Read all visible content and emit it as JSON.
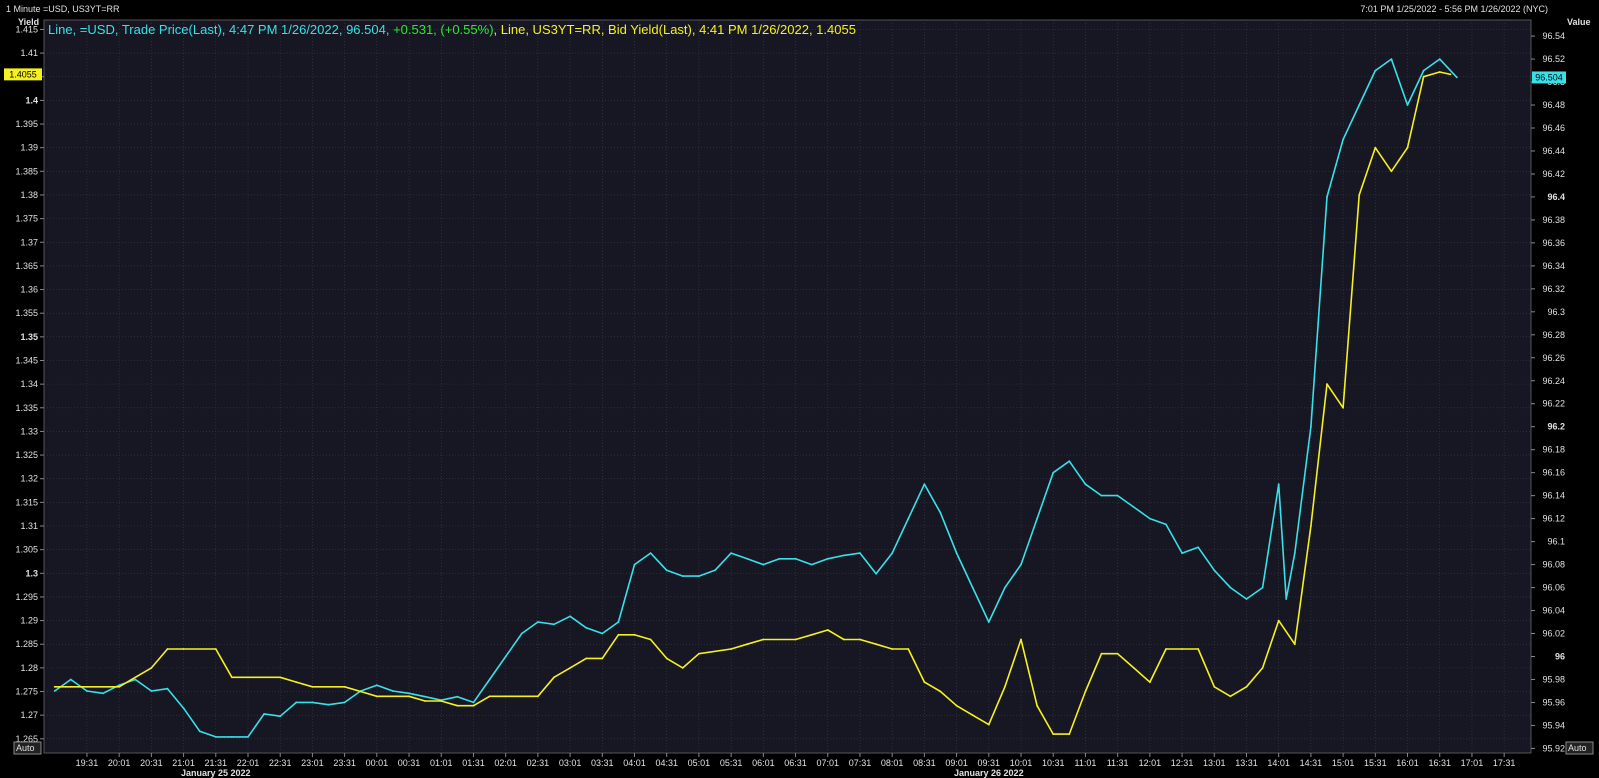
{
  "header": {
    "title": "1 Minute =USD, US3YT=RR",
    "time_range": "7:01 PM 1/25/2022 - 5:56 PM 1/26/2022 (NYC)"
  },
  "axes": {
    "left_title": "Yield",
    "right_title": "Value",
    "auto_left": "Auto",
    "auto_right": "Auto"
  },
  "legend": {
    "usd_text": "Line, =USD, Trade Price(Last), 4:47 PM 1/26/2022, 96.504, ",
    "usd_change": "+0.531, (+0.55%)",
    "yield_text": ", Line, US3YT=RR, Bid Yield(Last), 4:41 PM 1/26/2022, 1.4055"
  },
  "colors": {
    "background": "#171723",
    "grid": "#3a3a4a",
    "usd_series": "#38e0e8",
    "yield_series": "#f5f020",
    "change_positive": "#2ee82e",
    "axis_text": "#e0e0e0"
  },
  "chart_data": {
    "type": "line",
    "title": "1 Minute =USD, US3YT=RR",
    "x_ticks": [
      "19:31",
      "20:01",
      "20:31",
      "21:01",
      "21:31",
      "22:01",
      "22:31",
      "23:01",
      "23:31",
      "00:01",
      "00:31",
      "01:01",
      "01:31",
      "02:01",
      "02:31",
      "03:01",
      "03:31",
      "04:01",
      "04:31",
      "05:01",
      "05:31",
      "06:01",
      "06:31",
      "07:01",
      "07:31",
      "08:01",
      "08:31",
      "09:01",
      "09:31",
      "10:01",
      "10:31",
      "11:01",
      "11:31",
      "12:01",
      "12:31",
      "13:01",
      "13:31",
      "14:01",
      "14:31",
      "15:01",
      "15:31",
      "16:01",
      "16:31",
      "17:01",
      "17:31"
    ],
    "x_date_labels": [
      {
        "label": "January 25 2022",
        "at": "21:31"
      },
      {
        "label": "January 26 2022",
        "at": "09:31"
      }
    ],
    "left_axis": {
      "label": "Yield",
      "range": [
        1.262,
        1.417
      ],
      "ticks": [
        "1.265",
        "1.27",
        "1.275",
        "1.28",
        "1.285",
        "1.29",
        "1.295",
        "1.3",
        "1.305",
        "1.31",
        "1.315",
        "1.32",
        "1.325",
        "1.33",
        "1.335",
        "1.34",
        "1.345",
        "1.35",
        "1.355",
        "1.36",
        "1.365",
        "1.37",
        "1.375",
        "1.38",
        "1.385",
        "1.39",
        "1.395",
        "1.4",
        "1.405",
        "1.41",
        "1.415"
      ],
      "current_marker": "1.4055"
    },
    "right_axis": {
      "label": "Value",
      "range": [
        95.916,
        96.554
      ],
      "ticks": [
        "95.92",
        "95.94",
        "95.96",
        "95.98",
        "96",
        "96.02",
        "96.04",
        "96.06",
        "96.08",
        "96.1",
        "96.12",
        "96.14",
        "96.16",
        "96.18",
        "96.2",
        "96.22",
        "96.24",
        "96.26",
        "96.28",
        "96.3",
        "96.32",
        "96.34",
        "96.36",
        "96.38",
        "96.4",
        "96.42",
        "96.44",
        "96.46",
        "96.48",
        "96.5",
        "96.52",
        "96.54"
      ],
      "current_marker": "96.504"
    },
    "grid": true,
    "series": [
      {
        "name": "=USD, Trade Price(Last)",
        "axis": "right",
        "points": [
          [
            "19:01",
            95.97
          ],
          [
            "19:16",
            95.98
          ],
          [
            "19:31",
            95.97
          ],
          [
            "19:46",
            95.968
          ],
          [
            "20:01",
            95.975
          ],
          [
            "20:16",
            95.98
          ],
          [
            "20:31",
            95.97
          ],
          [
            "20:46",
            95.972
          ],
          [
            "21:01",
            95.955
          ],
          [
            "21:16",
            95.935
          ],
          [
            "21:31",
            95.93
          ],
          [
            "21:46",
            95.93
          ],
          [
            "22:01",
            95.93
          ],
          [
            "22:16",
            95.95
          ],
          [
            "22:31",
            95.948
          ],
          [
            "22:46",
            95.96
          ],
          [
            "23:01",
            95.96
          ],
          [
            "23:16",
            95.958
          ],
          [
            "23:31",
            95.96
          ],
          [
            "23:46",
            95.97
          ],
          [
            "00:01",
            95.975
          ],
          [
            "00:16",
            95.97
          ],
          [
            "00:31",
            95.968
          ],
          [
            "00:46",
            95.965
          ],
          [
            "01:01",
            95.962
          ],
          [
            "01:16",
            95.965
          ],
          [
            "01:31",
            95.96
          ],
          [
            "01:46",
            95.98
          ],
          [
            "02:01",
            96.0
          ],
          [
            "02:16",
            96.02
          ],
          [
            "02:31",
            96.03
          ],
          [
            "02:46",
            96.028
          ],
          [
            "03:01",
            96.035
          ],
          [
            "03:16",
            96.025
          ],
          [
            "03:31",
            96.02
          ],
          [
            "03:46",
            96.03
          ],
          [
            "04:01",
            96.08
          ],
          [
            "04:16",
            96.09
          ],
          [
            "04:31",
            96.075
          ],
          [
            "04:46",
            96.07
          ],
          [
            "05:01",
            96.07
          ],
          [
            "05:16",
            96.075
          ],
          [
            "05:31",
            96.09
          ],
          [
            "05:46",
            96.085
          ],
          [
            "06:01",
            96.08
          ],
          [
            "06:16",
            96.085
          ],
          [
            "06:31",
            96.085
          ],
          [
            "06:46",
            96.08
          ],
          [
            "07:01",
            96.085
          ],
          [
            "07:16",
            96.088
          ],
          [
            "07:31",
            96.09
          ],
          [
            "07:46",
            96.072
          ],
          [
            "08:01",
            96.09
          ],
          [
            "08:16",
            96.12
          ],
          [
            "08:31",
            96.15
          ],
          [
            "08:46",
            96.125
          ],
          [
            "09:01",
            96.09
          ],
          [
            "09:16",
            96.06
          ],
          [
            "09:31",
            96.03
          ],
          [
            "09:46",
            96.06
          ],
          [
            "10:01",
            96.08
          ],
          [
            "10:16",
            96.12
          ],
          [
            "10:31",
            96.16
          ],
          [
            "10:46",
            96.17
          ],
          [
            "11:01",
            96.15
          ],
          [
            "11:16",
            96.14
          ],
          [
            "11:31",
            96.14
          ],
          [
            "11:46",
            96.13
          ],
          [
            "12:01",
            96.12
          ],
          [
            "12:16",
            96.115
          ],
          [
            "12:31",
            96.09
          ],
          [
            "12:46",
            96.095
          ],
          [
            "13:01",
            96.075
          ],
          [
            "13:16",
            96.06
          ],
          [
            "13:31",
            96.05
          ],
          [
            "13:46",
            96.06
          ],
          [
            "14:01",
            96.15
          ],
          [
            "14:08",
            96.05
          ],
          [
            "14:16",
            96.09
          ],
          [
            "14:31",
            96.2
          ],
          [
            "14:46",
            96.4
          ],
          [
            "15:01",
            96.45
          ],
          [
            "15:16",
            96.48
          ],
          [
            "15:31",
            96.51
          ],
          [
            "15:46",
            96.52
          ],
          [
            "16:01",
            96.48
          ],
          [
            "16:16",
            96.51
          ],
          [
            "16:31",
            96.52
          ],
          [
            "16:47",
            96.504
          ]
        ]
      },
      {
        "name": "US3YT=RR, Bid Yield(Last)",
        "axis": "left",
        "points": [
          [
            "19:01",
            1.276
          ],
          [
            "19:16",
            1.276
          ],
          [
            "19:31",
            1.276
          ],
          [
            "20:01",
            1.276
          ],
          [
            "20:31",
            1.28
          ],
          [
            "20:46",
            1.284
          ],
          [
            "21:01",
            1.284
          ],
          [
            "21:31",
            1.284
          ],
          [
            "21:46",
            1.278
          ],
          [
            "22:01",
            1.278
          ],
          [
            "22:31",
            1.278
          ],
          [
            "22:46",
            1.277
          ],
          [
            "23:01",
            1.276
          ],
          [
            "23:31",
            1.276
          ],
          [
            "23:46",
            1.275
          ],
          [
            "00:01",
            1.274
          ],
          [
            "00:31",
            1.274
          ],
          [
            "00:46",
            1.273
          ],
          [
            "01:01",
            1.273
          ],
          [
            "01:16",
            1.272
          ],
          [
            "01:31",
            1.272
          ],
          [
            "01:46",
            1.274
          ],
          [
            "02:01",
            1.274
          ],
          [
            "02:31",
            1.274
          ],
          [
            "02:46",
            1.278
          ],
          [
            "03:01",
            1.28
          ],
          [
            "03:16",
            1.282
          ],
          [
            "03:31",
            1.282
          ],
          [
            "03:46",
            1.287
          ],
          [
            "04:01",
            1.287
          ],
          [
            "04:16",
            1.286
          ],
          [
            "04:31",
            1.282
          ],
          [
            "04:46",
            1.28
          ],
          [
            "05:01",
            1.283
          ],
          [
            "05:31",
            1.284
          ],
          [
            "05:46",
            1.285
          ],
          [
            "06:01",
            1.286
          ],
          [
            "06:31",
            1.286
          ],
          [
            "06:46",
            1.287
          ],
          [
            "07:01",
            1.288
          ],
          [
            "07:16",
            1.286
          ],
          [
            "07:31",
            1.286
          ],
          [
            "07:46",
            1.285
          ],
          [
            "08:01",
            1.284
          ],
          [
            "08:16",
            1.284
          ],
          [
            "08:31",
            1.277
          ],
          [
            "08:46",
            1.275
          ],
          [
            "09:01",
            1.272
          ],
          [
            "09:16",
            1.27
          ],
          [
            "09:31",
            1.268
          ],
          [
            "09:46",
            1.276
          ],
          [
            "10:01",
            1.286
          ],
          [
            "10:16",
            1.272
          ],
          [
            "10:31",
            1.266
          ],
          [
            "10:46",
            1.266
          ],
          [
            "11:01",
            1.275
          ],
          [
            "11:16",
            1.283
          ],
          [
            "11:31",
            1.283
          ],
          [
            "11:46",
            1.28
          ],
          [
            "12:01",
            1.277
          ],
          [
            "12:16",
            1.284
          ],
          [
            "12:31",
            1.284
          ],
          [
            "12:46",
            1.284
          ],
          [
            "13:01",
            1.276
          ],
          [
            "13:16",
            1.274
          ],
          [
            "13:31",
            1.276
          ],
          [
            "13:46",
            1.28
          ],
          [
            "14:01",
            1.29
          ],
          [
            "14:16",
            1.285
          ],
          [
            "14:31",
            1.31
          ],
          [
            "14:46",
            1.34
          ],
          [
            "15:01",
            1.335
          ],
          [
            "15:16",
            1.38
          ],
          [
            "15:31",
            1.39
          ],
          [
            "15:46",
            1.385
          ],
          [
            "16:01",
            1.39
          ],
          [
            "16:16",
            1.405
          ],
          [
            "16:31",
            1.406
          ],
          [
            "16:41",
            1.4055
          ]
        ]
      }
    ]
  }
}
